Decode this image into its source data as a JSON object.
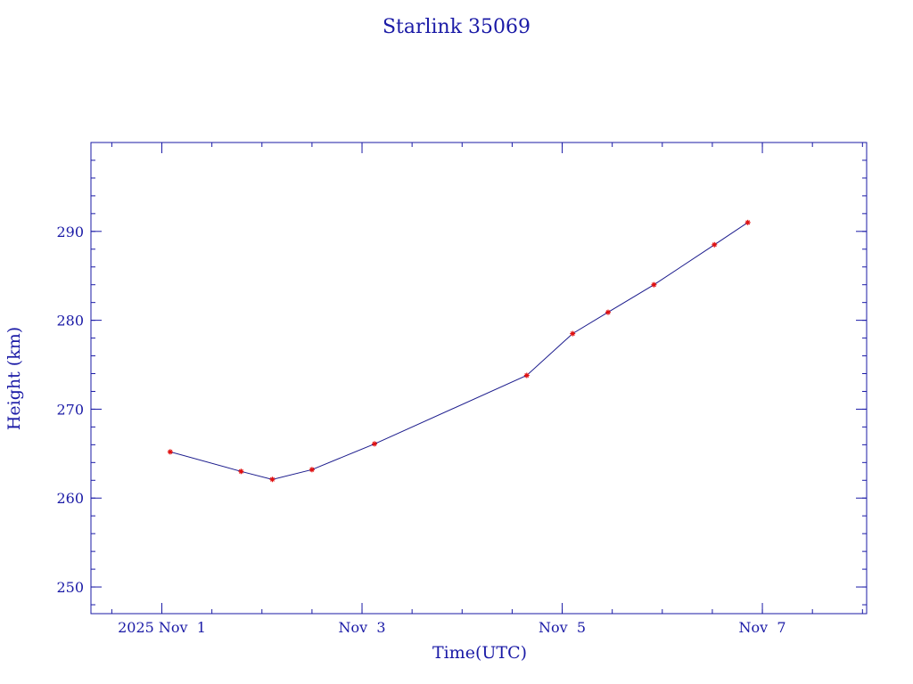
{
  "chart_data": {
    "type": "line",
    "title": "Starlink 35069",
    "xlabel": "Time(UTC)",
    "ylabel": "Height (km)",
    "x_axis": {
      "type": "date",
      "range": [
        "2025-10-31T07:00:00Z",
        "2025-11-08T01:00:00Z"
      ],
      "major_ticks": [
        {
          "at": "2025-11-01T00:00:00Z",
          "label": "2025 Nov  1"
        },
        {
          "at": "2025-11-03T00:00:00Z",
          "label": "Nov  3"
        },
        {
          "at": "2025-11-05T00:00:00Z",
          "label": "Nov  5"
        },
        {
          "at": "2025-11-07T00:00:00Z",
          "label": "Nov  7"
        }
      ],
      "minor_tick_interval_hours": 12
    },
    "y_axis": {
      "range": [
        247,
        300
      ],
      "major_ticks": [
        250,
        260,
        270,
        280,
        290
      ],
      "minor_tick_interval": 2
    },
    "ylim": [
      247,
      300
    ],
    "grid": false,
    "series": [
      {
        "points": [
          {
            "x": "2025-11-01T02:00:00Z",
            "y": 265.2
          },
          {
            "x": "2025-11-01T19:00:00Z",
            "y": 263.0
          },
          {
            "x": "2025-11-02T02:30:00Z",
            "y": 262.1
          },
          {
            "x": "2025-11-02T12:00:00Z",
            "y": 263.2
          },
          {
            "x": "2025-11-03T03:00:00Z",
            "y": 266.1
          },
          {
            "x": "2025-11-04T15:30:00Z",
            "y": 273.8
          },
          {
            "x": "2025-11-05T02:30:00Z",
            "y": 278.5
          },
          {
            "x": "2025-11-05T11:00:00Z",
            "y": 280.9
          },
          {
            "x": "2025-11-05T22:00:00Z",
            "y": 284.0
          },
          {
            "x": "2025-11-06T12:30:00Z",
            "y": 288.5
          },
          {
            "x": "2025-11-06T20:30:00Z",
            "y": 291.0
          }
        ]
      }
    ]
  },
  "colors": {
    "axis": "#1a1aa6",
    "line": "#1a1a8c",
    "marker": "#e01010",
    "background": "#ffffff"
  }
}
